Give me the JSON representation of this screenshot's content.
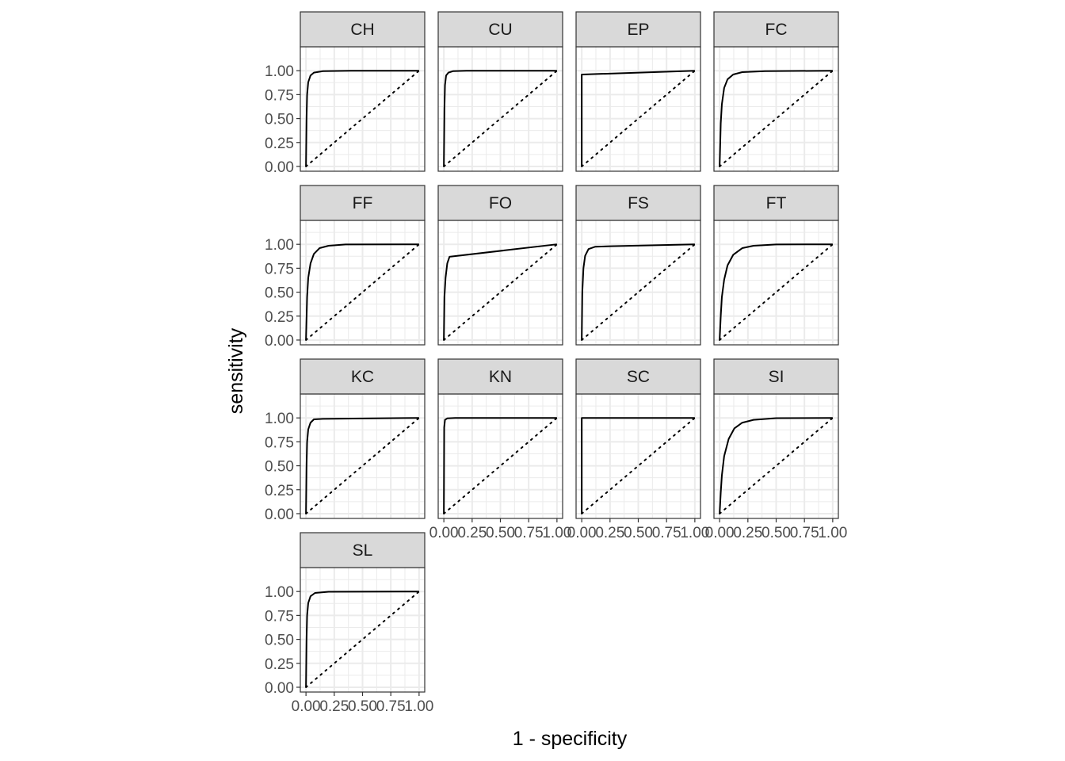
{
  "chart_data": {
    "type": "line",
    "xlabel": "1 - specificity",
    "ylabel": "sensitivity",
    "xlim": [
      0,
      1
    ],
    "ylim": [
      0,
      1
    ],
    "x_ticks": [
      "0.00",
      "0.25",
      "0.50",
      "0.75",
      "1.00"
    ],
    "y_ticks": [
      "0.00",
      "0.25",
      "0.50",
      "0.75",
      "1.00"
    ],
    "grid": true,
    "reference_line": {
      "style": "dotted",
      "points": [
        [
          0,
          0
        ],
        [
          1,
          1
        ]
      ]
    },
    "colors": {
      "curve": "#000000",
      "strip_bg": "#d9d9d9",
      "grid": "#ebebeb",
      "border": "#333333"
    },
    "facets": [
      {
        "label": "CH",
        "points": [
          [
            0,
            0
          ],
          [
            0.005,
            0.5
          ],
          [
            0.01,
            0.75
          ],
          [
            0.02,
            0.88
          ],
          [
            0.04,
            0.95
          ],
          [
            0.07,
            0.98
          ],
          [
            0.15,
            0.995
          ],
          [
            0.4,
            1
          ],
          [
            1,
            1
          ]
        ]
      },
      {
        "label": "CU",
        "points": [
          [
            0,
            0
          ],
          [
            0.005,
            0.6
          ],
          [
            0.01,
            0.85
          ],
          [
            0.02,
            0.95
          ],
          [
            0.04,
            0.98
          ],
          [
            0.08,
            0.995
          ],
          [
            0.2,
            1
          ],
          [
            1,
            1
          ]
        ]
      },
      {
        "label": "EP",
        "points": [
          [
            0,
            0
          ],
          [
            0,
            0.96
          ],
          [
            1,
            1
          ]
        ]
      },
      {
        "label": "FC",
        "points": [
          [
            0,
            0
          ],
          [
            0.01,
            0.45
          ],
          [
            0.02,
            0.65
          ],
          [
            0.04,
            0.82
          ],
          [
            0.07,
            0.91
          ],
          [
            0.12,
            0.96
          ],
          [
            0.2,
            0.985
          ],
          [
            0.4,
            0.995
          ],
          [
            1,
            1
          ]
        ]
      },
      {
        "label": "FF",
        "points": [
          [
            0,
            0
          ],
          [
            0.01,
            0.45
          ],
          [
            0.02,
            0.65
          ],
          [
            0.04,
            0.8
          ],
          [
            0.07,
            0.9
          ],
          [
            0.12,
            0.96
          ],
          [
            0.2,
            0.985
          ],
          [
            0.35,
            0.998
          ],
          [
            1,
            1
          ]
        ]
      },
      {
        "label": "FO",
        "points": [
          [
            0,
            0
          ],
          [
            0.005,
            0.45
          ],
          [
            0.015,
            0.65
          ],
          [
            0.03,
            0.8
          ],
          [
            0.05,
            0.87
          ],
          [
            1,
            1
          ]
        ]
      },
      {
        "label": "FS",
        "points": [
          [
            0,
            0
          ],
          [
            0.005,
            0.5
          ],
          [
            0.015,
            0.75
          ],
          [
            0.03,
            0.88
          ],
          [
            0.06,
            0.95
          ],
          [
            0.12,
            0.975
          ],
          [
            0.25,
            0.98
          ],
          [
            1,
            1
          ]
        ]
      },
      {
        "label": "FT",
        "points": [
          [
            0,
            0
          ],
          [
            0.01,
            0.25
          ],
          [
            0.02,
            0.45
          ],
          [
            0.04,
            0.63
          ],
          [
            0.07,
            0.78
          ],
          [
            0.12,
            0.89
          ],
          [
            0.2,
            0.96
          ],
          [
            0.3,
            0.985
          ],
          [
            0.5,
            0.998
          ],
          [
            1,
            1
          ]
        ]
      },
      {
        "label": "KC",
        "points": [
          [
            0,
            0
          ],
          [
            0.005,
            0.5
          ],
          [
            0.01,
            0.75
          ],
          [
            0.02,
            0.88
          ],
          [
            0.04,
            0.95
          ],
          [
            0.07,
            0.985
          ],
          [
            0.15,
            0.99
          ],
          [
            1,
            1
          ]
        ]
      },
      {
        "label": "KN",
        "points": [
          [
            0,
            0
          ],
          [
            0.003,
            0.9
          ],
          [
            0.01,
            0.98
          ],
          [
            0.03,
            0.995
          ],
          [
            0.1,
            1
          ],
          [
            1,
            1
          ]
        ]
      },
      {
        "label": "SC",
        "points": [
          [
            0,
            0
          ],
          [
            0,
            1
          ],
          [
            1,
            1
          ]
        ]
      },
      {
        "label": "SI",
        "points": [
          [
            0,
            0
          ],
          [
            0.01,
            0.22
          ],
          [
            0.02,
            0.4
          ],
          [
            0.04,
            0.6
          ],
          [
            0.08,
            0.78
          ],
          [
            0.13,
            0.89
          ],
          [
            0.2,
            0.95
          ],
          [
            0.3,
            0.98
          ],
          [
            0.5,
            0.997
          ],
          [
            1,
            1
          ]
        ]
      },
      {
        "label": "SL",
        "points": [
          [
            0,
            0
          ],
          [
            0.005,
            0.5
          ],
          [
            0.01,
            0.75
          ],
          [
            0.02,
            0.88
          ],
          [
            0.04,
            0.95
          ],
          [
            0.08,
            0.985
          ],
          [
            0.2,
            0.997
          ],
          [
            1,
            1
          ]
        ]
      }
    ]
  }
}
